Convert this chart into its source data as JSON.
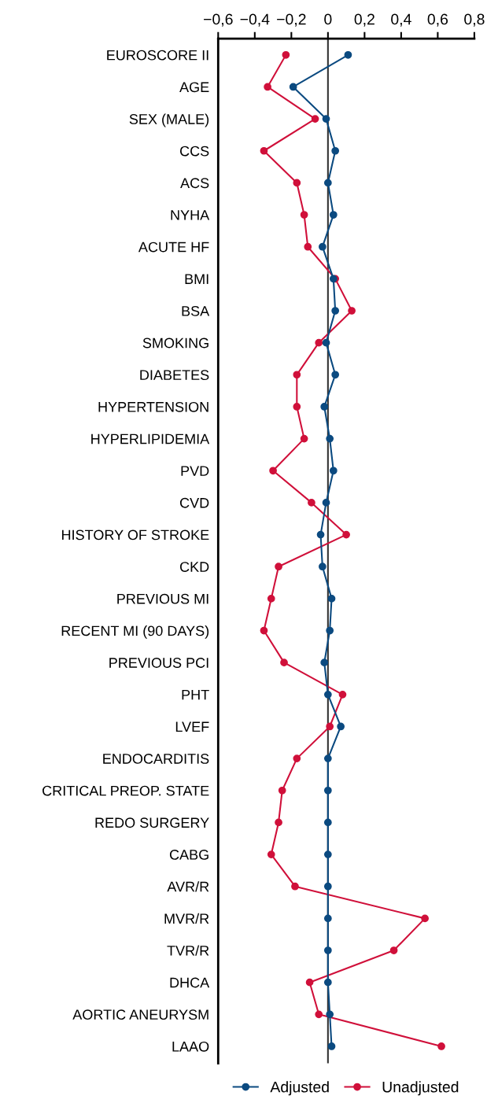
{
  "chart_data": {
    "type": "line",
    "orientation": "horizontal",
    "categories": [
      "EUROSCORE II",
      "AGE",
      "SEX (MALE)",
      "CCS",
      "ACS",
      "NYHA",
      "ACUTE HF",
      "BMI",
      "BSA",
      "SMOKING",
      "DIABETES",
      "HYPERTENSION",
      "HYPERLIPIDEMIA",
      "PVD",
      "CVD",
      "HISTORY OF STROKE",
      "CKD",
      "PREVIOUS MI",
      "RECENT MI (90 DAYS)",
      "PREVIOUS PCI",
      "PHT",
      "LVEF",
      "ENDOCARDITIS",
      "CRITICAL PREOP. STATE",
      "REDO SURGERY",
      "CABG",
      "AVR/R",
      "MVR/R",
      "TVR/R",
      "DHCA",
      "AORTIC ANEURYSM",
      "LAAO"
    ],
    "series": [
      {
        "name": "Adjusted",
        "color": "#0b4a80",
        "values": [
          0.11,
          -0.19,
          -0.01,
          0.04,
          0.0,
          0.03,
          -0.03,
          0.03,
          0.04,
          -0.01,
          0.04,
          -0.02,
          0.01,
          0.03,
          -0.01,
          -0.04,
          -0.03,
          0.02,
          0.01,
          -0.02,
          0.0,
          0.07,
          0.0,
          0.0,
          0.0,
          0.0,
          0.0,
          0.0,
          0.0,
          0.0,
          0.01,
          0.02
        ]
      },
      {
        "name": "Unadjusted",
        "color": "#d0103a",
        "values": [
          -0.23,
          -0.33,
          -0.07,
          -0.35,
          -0.17,
          -0.13,
          -0.11,
          0.04,
          0.13,
          -0.05,
          -0.17,
          -0.17,
          -0.13,
          -0.3,
          -0.09,
          0.1,
          -0.27,
          -0.31,
          -0.35,
          -0.24,
          0.08,
          0.01,
          -0.17,
          -0.25,
          -0.27,
          -0.31,
          -0.18,
          0.53,
          0.36,
          -0.1,
          -0.05,
          0.62
        ]
      }
    ],
    "xlim": [
      -0.6,
      0.8
    ],
    "xticks": [
      {
        "value": -0.6,
        "label": "−0,6"
      },
      {
        "value": -0.4,
        "label": "−0,4"
      },
      {
        "value": -0.2,
        "label": "−0,2"
      },
      0,
      {
        "value": 0.2,
        "label": "0,2"
      },
      {
        "value": 0.4,
        "label": "0,4"
      },
      {
        "value": 0.6,
        "label": "0,6"
      },
      {
        "value": 0.8,
        "label": "0,8"
      }
    ],
    "ref_lines": [
      {
        "axis": "x",
        "value": 0,
        "color": "#333333"
      }
    ],
    "grid": false,
    "legend": "bottom",
    "marker": "circle",
    "line_style": "solid"
  }
}
